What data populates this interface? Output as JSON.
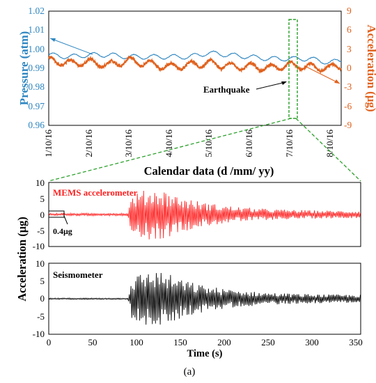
{
  "chart_data": [
    {
      "type": "line",
      "panel": "top",
      "xlabel": "Calendar data (d /mm/ yy)",
      "y_left_label": "Pressure (atm)",
      "y_right_label": "Acceleration (μg)",
      "x_ticks": [
        "1/10/16",
        "2/10/16",
        "3/10/16",
        "4/10/16",
        "5/10/16",
        "6/10/16",
        "7/10/16",
        "8/10/16"
      ],
      "xlim": [
        0,
        7.3
      ],
      "y_left_ticks": [
        "0.96",
        "0.97",
        "0.98",
        "0.99",
        "1.00",
        "1.01",
        "1.02"
      ],
      "y_right_ticks": [
        "-9",
        "-6",
        "-3",
        "0",
        "3",
        "6",
        "9"
      ],
      "ylim_left": [
        0.96,
        1.02
      ],
      "ylim_right": [
        -9,
        9
      ],
      "colors": {
        "pressure": "#2e86c1",
        "acceleration": "#e0621e",
        "highlight": "#2ca02c"
      },
      "annotation": "Earthquake",
      "highlight_x_day": 6.0,
      "pressure_description": "blue line around 0.993 to 0.998 atm with daily oscillation",
      "pressure_keypoints": {
        "x": [
          0,
          0.5,
          1,
          1.5,
          2,
          2.5,
          3,
          3.5,
          4,
          4.5,
          5,
          5.5,
          6,
          6.5,
          7,
          7.3
        ],
        "y": [
          0.997,
          0.996,
          0.997,
          0.997,
          0.996,
          0.996,
          0.996,
          0.996,
          0.998,
          0.997,
          0.996,
          0.995,
          0.995,
          0.995,
          0.993,
          0.994
        ]
      },
      "acceleration_keypoints": {
        "x": [
          0,
          0.5,
          1,
          1.5,
          2,
          2.5,
          3,
          3.5,
          4,
          4.5,
          5,
          5.5,
          6,
          6.5,
          7,
          7.3
        ],
        "y": [
          1.2,
          0.8,
          1.0,
          0.5,
          1.2,
          0.7,
          0.2,
          0.5,
          0.8,
          0.3,
          0.3,
          0.0,
          0.5,
          0.2,
          0.0,
          0.5
        ]
      }
    },
    {
      "type": "line",
      "panel": "middle",
      "series_name": "MEMS accelerometer",
      "color": "#ff2020",
      "annotation": "0.4μg",
      "xlim": [
        0,
        355
      ],
      "ylim": [
        -10,
        10
      ],
      "y_ticks": [
        "10",
        "5",
        "0",
        "-5",
        "-10"
      ],
      "envelope_description": "noise ±0.4 until ~90 s, burst up to ±8 between ~95 and ~145 s, decaying to ±1 by 350 s"
    },
    {
      "type": "line",
      "panel": "bottom",
      "series_name": "Seismometer",
      "color": "#000000",
      "xlim": [
        0,
        355
      ],
      "ylim": [
        -10,
        10
      ],
      "y_ticks": [
        "10",
        "5",
        "0",
        "-5",
        "-10"
      ],
      "x_ticks": [
        "0",
        "50",
        "100",
        "150",
        "200",
        "250",
        "300",
        "350"
      ],
      "xlabel": "Time (s)",
      "shared_ylabel": "Acceleration (μg)",
      "envelope_description": "flat until ~90 s, burst up to ±8 between ~95 and ~145 s, decaying to ±0.8 by 350 s"
    }
  ],
  "caption": "(a)"
}
